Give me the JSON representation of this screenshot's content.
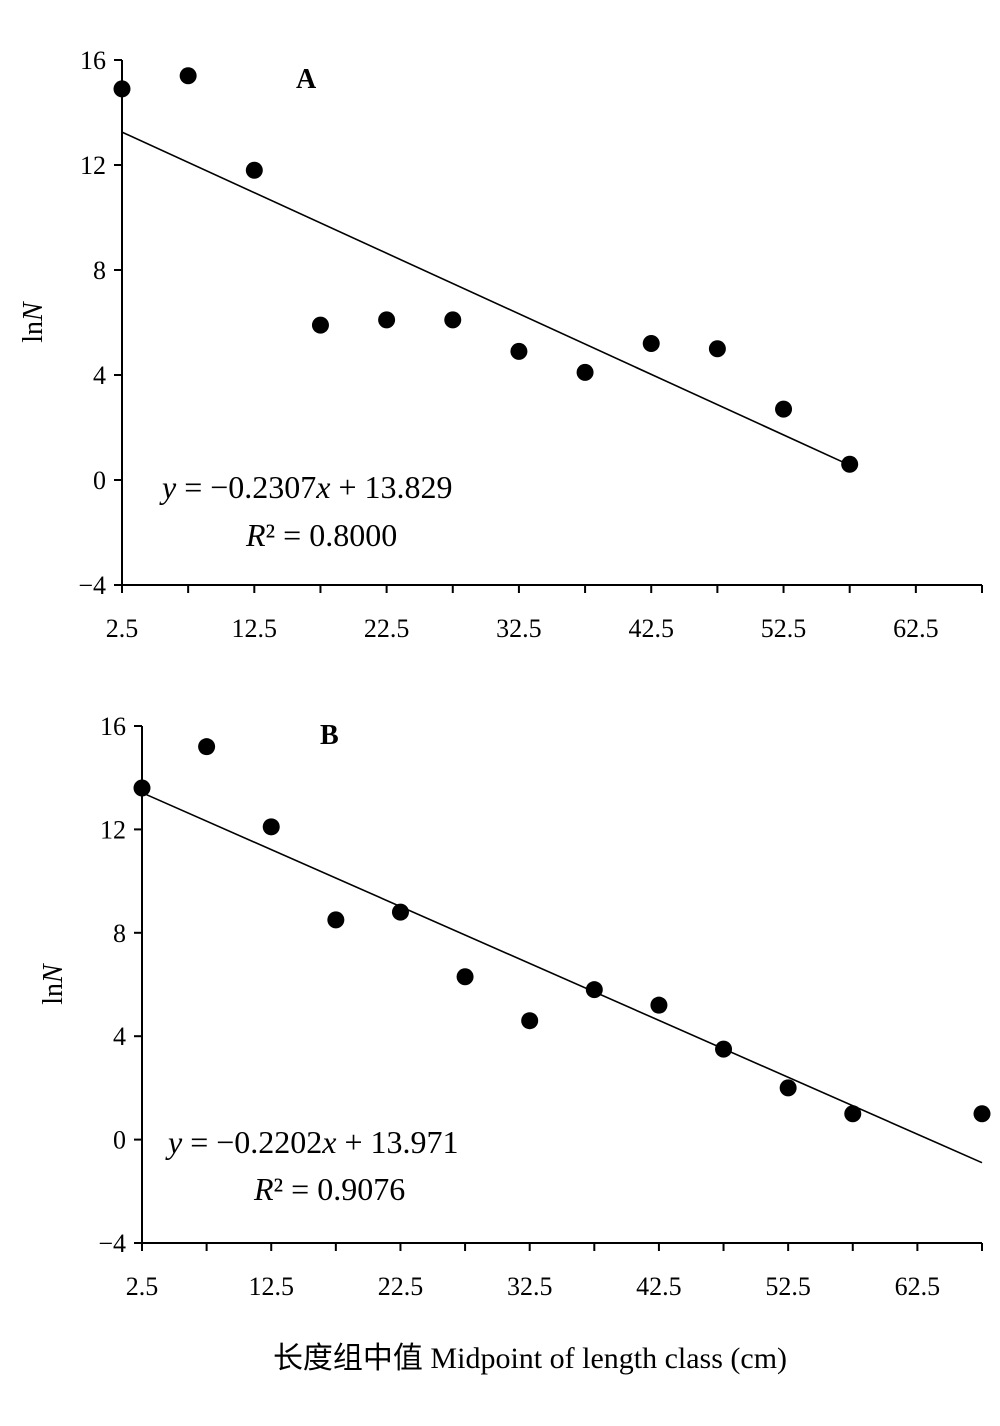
{
  "chart_data": [
    {
      "type": "scatter",
      "panel_label": "A",
      "ylabel": "lnN",
      "xlim": [
        2.5,
        67.5
      ],
      "ylim": [
        -4,
        16
      ],
      "x_ticks": [
        "2.5",
        "12.5",
        "22.5",
        "32.5",
        "42.5",
        "52.5",
        "62.5"
      ],
      "y_ticks": [
        "16",
        "12",
        "8",
        "4",
        "0",
        "−4"
      ],
      "points": [
        {
          "x": 2.5,
          "y": 14.9
        },
        {
          "x": 7.5,
          "y": 15.4
        },
        {
          "x": 12.5,
          "y": 11.8
        },
        {
          "x": 17.5,
          "y": 5.9
        },
        {
          "x": 22.5,
          "y": 6.1
        },
        {
          "x": 27.5,
          "y": 6.1
        },
        {
          "x": 32.5,
          "y": 4.9
        },
        {
          "x": 37.5,
          "y": 4.1
        },
        {
          "x": 42.5,
          "y": 5.2
        },
        {
          "x": 47.5,
          "y": 5.0
        },
        {
          "x": 52.5,
          "y": 2.7
        },
        {
          "x": 57.5,
          "y": 0.6
        }
      ],
      "trendline": {
        "slope": -0.2307,
        "intercept": 13.829,
        "x_range": [
          2.5,
          57.5
        ]
      },
      "equation": "y = −0.2307x + 13.829",
      "r_squared": "R² = 0.8000"
    },
    {
      "type": "scatter",
      "panel_label": "B",
      "ylabel": "lnN",
      "xlim": [
        2.5,
        67.5
      ],
      "ylim": [
        -4,
        16
      ],
      "x_ticks": [
        "2.5",
        "12.5",
        "22.5",
        "32.5",
        "42.5",
        "52.5",
        "62.5"
      ],
      "y_ticks": [
        "16",
        "12",
        "8",
        "4",
        "0",
        "−4"
      ],
      "points": [
        {
          "x": 2.5,
          "y": 13.6
        },
        {
          "x": 7.5,
          "y": 15.2
        },
        {
          "x": 12.5,
          "y": 12.1
        },
        {
          "x": 17.5,
          "y": 8.5
        },
        {
          "x": 22.5,
          "y": 8.8
        },
        {
          "x": 27.5,
          "y": 6.3
        },
        {
          "x": 32.5,
          "y": 4.6
        },
        {
          "x": 37.5,
          "y": 5.8
        },
        {
          "x": 42.5,
          "y": 5.2
        },
        {
          "x": 47.5,
          "y": 3.5
        },
        {
          "x": 52.5,
          "y": 2.0
        },
        {
          "x": 57.5,
          "y": 1.0
        },
        {
          "x": 67.5,
          "y": 1.0
        }
      ],
      "trendline": {
        "slope": -0.2202,
        "intercept": 13.971,
        "x_range": [
          2.5,
          67.5
        ]
      },
      "equation": "y = −0.2202x + 13.971",
      "r_squared": "R² = 0.9076"
    }
  ],
  "xlabel": "长度组中值 Midpoint of length class (cm)"
}
